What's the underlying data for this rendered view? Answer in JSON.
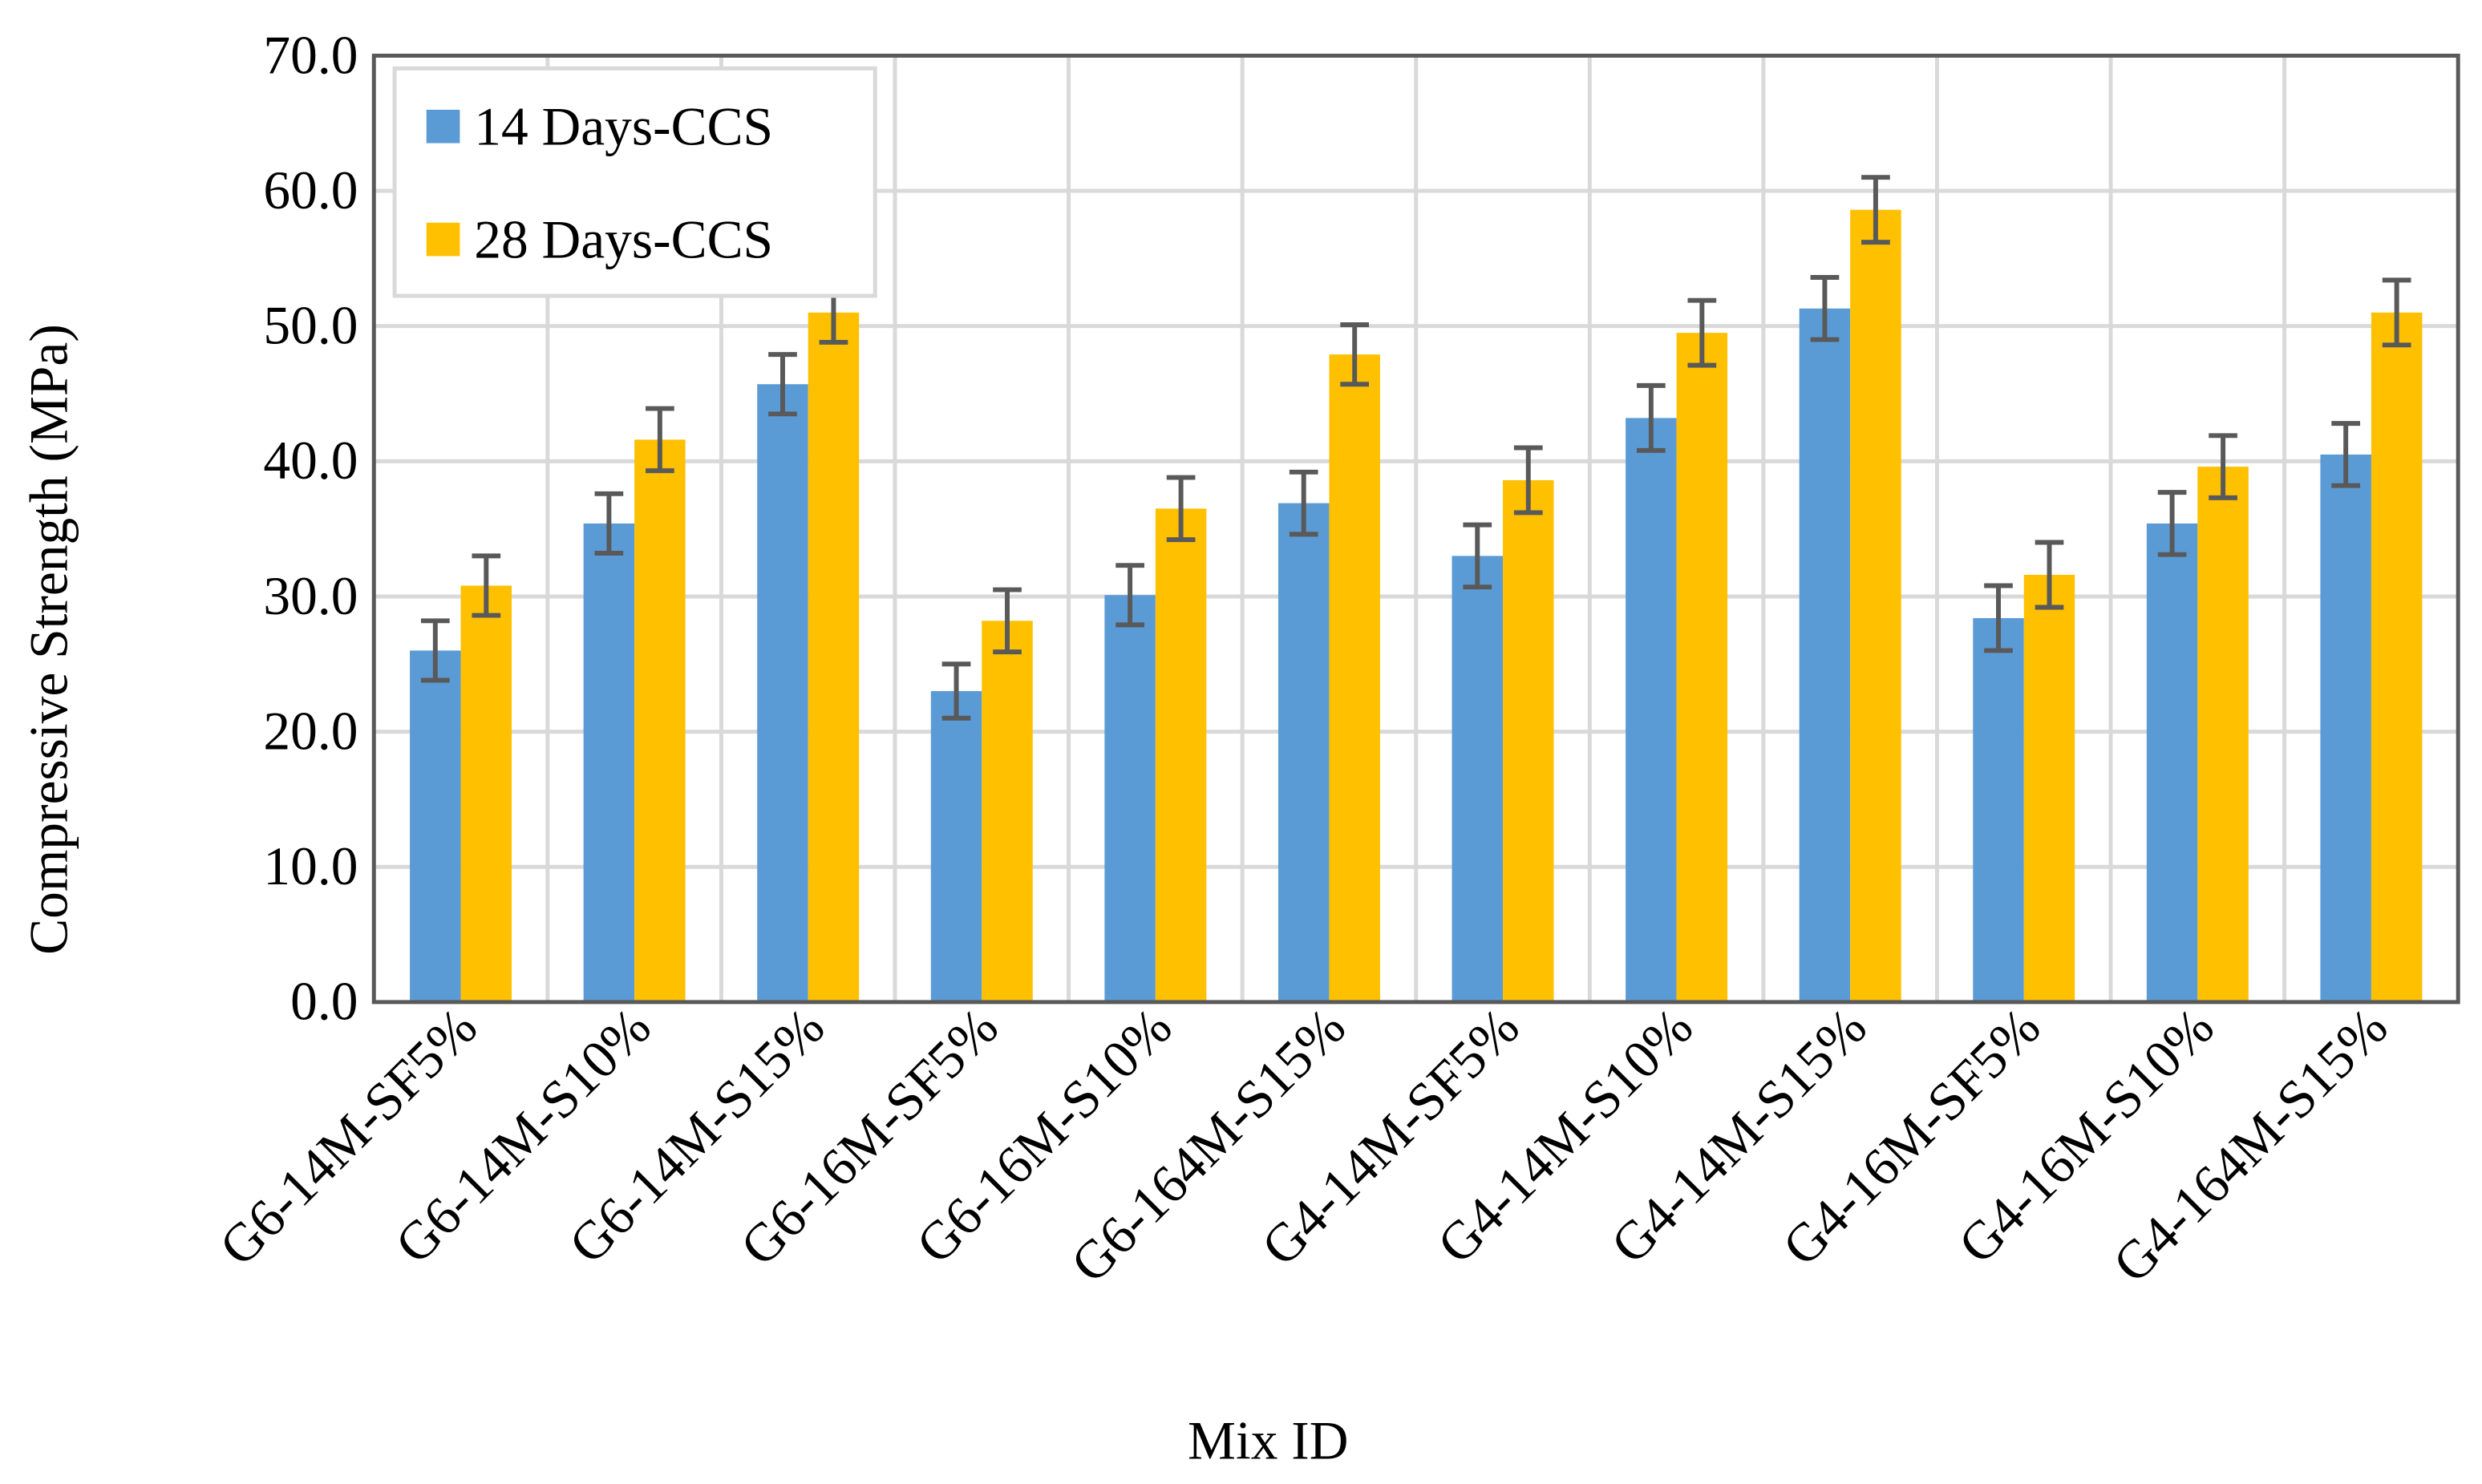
{
  "chart_data": {
    "type": "bar",
    "title": "",
    "xlabel": "Mix ID",
    "ylabel": "Compressive Strength (MPa)",
    "ylim": [
      0,
      70
    ],
    "yticks": [
      "0.0",
      "10.0",
      "20.0",
      "30.0",
      "40.0",
      "50.0",
      "60.0",
      "70.0"
    ],
    "grid": true,
    "legend_position": "top-left",
    "categories": [
      "G6-14M-SF5%",
      "G6-14M-S10%",
      "G6-14M-S15%",
      "G6-16M-SF5%",
      "G6-16M-S10%",
      "G6-164M-S15%",
      "G4-14M-SF5%",
      "G4-14M-S10%",
      "G4-14M-S15%",
      "G4-16M-SF5%",
      "G4-16M-S10%",
      "G4-164M-S15%"
    ],
    "series": [
      {
        "name": "14 Days-CCS",
        "color": "#5B9BD5",
        "values": [
          26.0,
          35.4,
          45.7,
          23.0,
          30.1,
          36.9,
          33.0,
          43.2,
          51.3,
          28.4,
          35.4,
          40.5
        ],
        "error": [
          2.2,
          2.2,
          2.2,
          2.0,
          2.2,
          2.3,
          2.3,
          2.4,
          2.3,
          2.4,
          2.3,
          2.3
        ]
      },
      {
        "name": "28 Days-CCS",
        "color": "#FFC000",
        "values": [
          30.8,
          41.6,
          51.0,
          28.2,
          36.5,
          47.9,
          38.6,
          49.5,
          58.6,
          31.6,
          39.6,
          51.0
        ],
        "error": [
          2.2,
          2.3,
          2.2,
          2.3,
          2.3,
          2.2,
          2.4,
          2.4,
          2.4,
          2.4,
          2.3,
          2.4
        ]
      }
    ]
  }
}
